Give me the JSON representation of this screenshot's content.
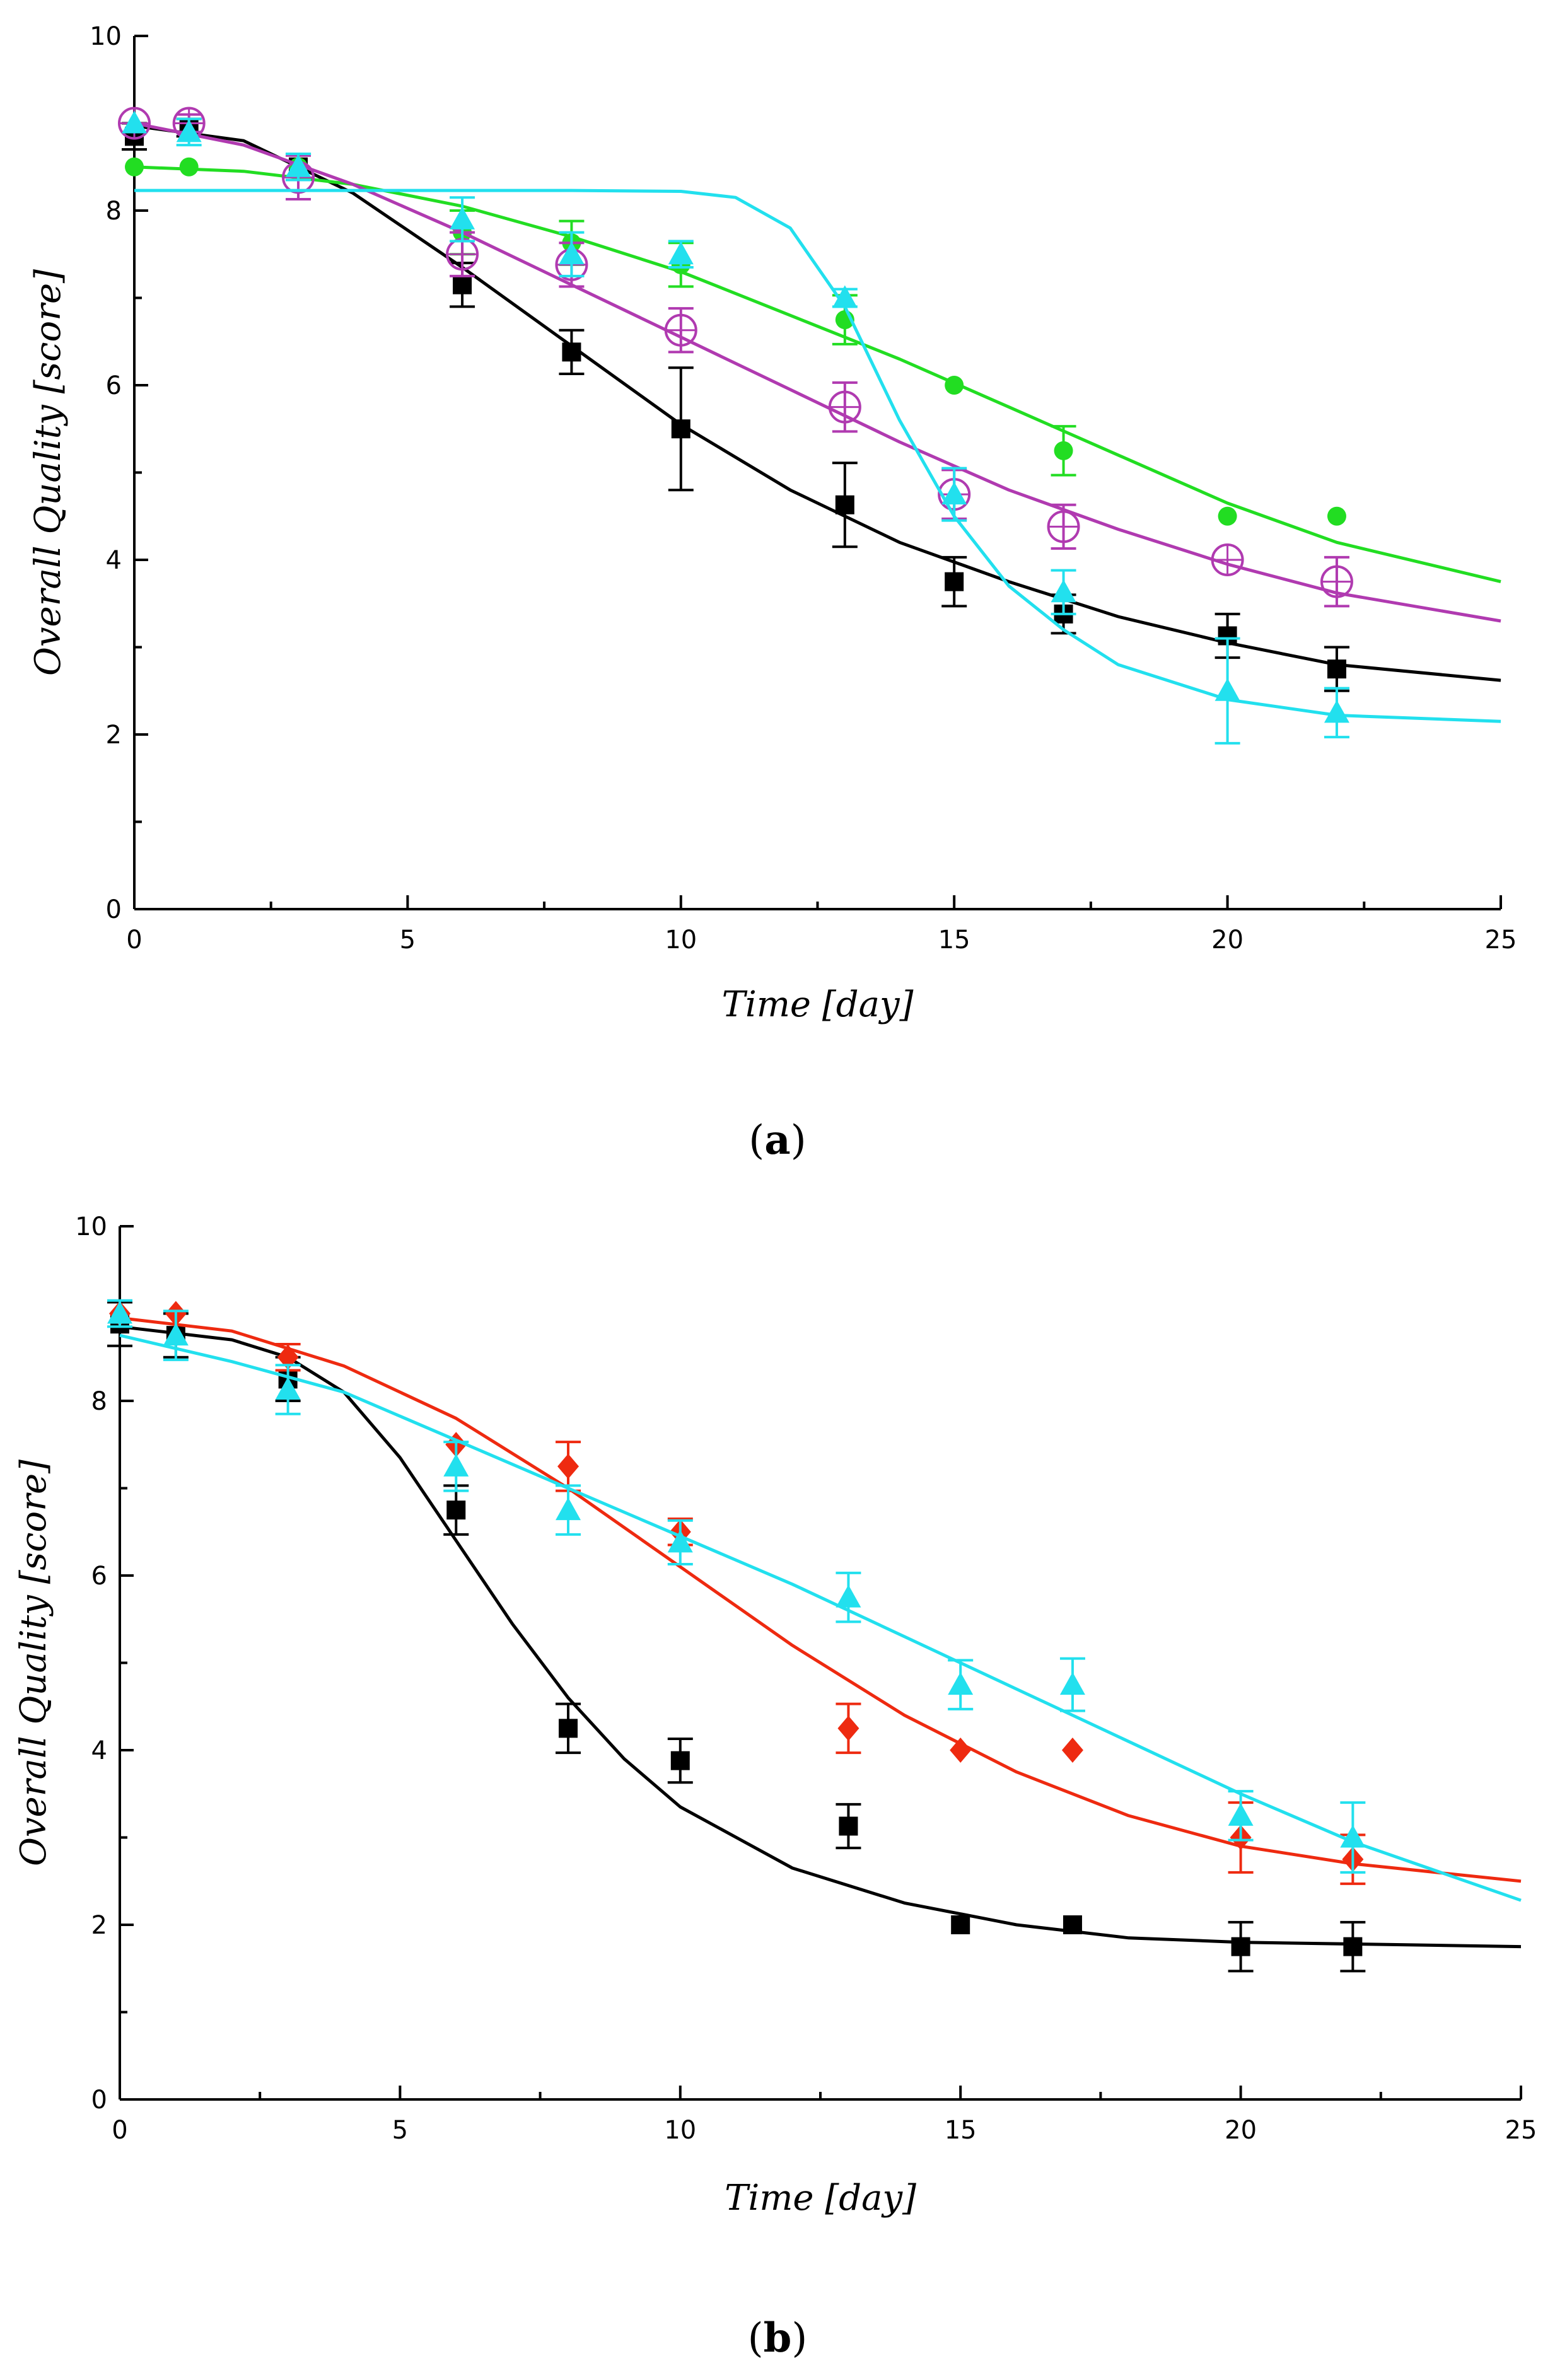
{
  "chart_data": [
    {
      "panel": "a",
      "type": "scatter",
      "xlabel": "Time [day]",
      "ylabel": "Overall Quality [score]",
      "xlim": [
        0,
        25
      ],
      "ylim": [
        0,
        10
      ],
      "xticks": [
        0,
        5,
        10,
        15,
        20,
        25
      ],
      "yticks": [
        0,
        2,
        4,
        6,
        8,
        10
      ],
      "grid": false,
      "series": [
        {
          "color": "#000000",
          "marker": "square",
          "x": [
            0,
            1,
            3,
            6,
            8,
            10,
            13,
            15,
            17,
            20,
            22
          ],
          "y": [
            8.85,
            8.95,
            8.5,
            7.15,
            6.38,
            5.5,
            4.63,
            3.75,
            3.38,
            3.13,
            2.75
          ],
          "err": [
            0.15,
            0.1,
            0.15,
            0.25,
            0.25,
            0.7,
            0.48,
            0.28,
            0.22,
            0.25,
            0.25
          ],
          "fit": [
            [
              0,
              8.97
            ],
            [
              2,
              8.8
            ],
            [
              4,
              8.2
            ],
            [
              6,
              7.35
            ],
            [
              8,
              6.45
            ],
            [
              10,
              5.55
            ],
            [
              12,
              4.8
            ],
            [
              14,
              4.2
            ],
            [
              16,
              3.75
            ],
            [
              18,
              3.35
            ],
            [
              20,
              3.05
            ],
            [
              22,
              2.8
            ],
            [
              25,
              2.62
            ]
          ]
        },
        {
          "color": "#22dd22",
          "marker": "circle-filled",
          "x": [
            0,
            1,
            3,
            6,
            8,
            10,
            13,
            15,
            17,
            20,
            22
          ],
          "y": [
            8.5,
            8.5,
            8.5,
            7.75,
            7.63,
            7.38,
            6.75,
            6.0,
            5.25,
            4.5,
            4.5
          ],
          "err": [
            0,
            0,
            0,
            0.25,
            0.25,
            0.25,
            0.28,
            0,
            0.28,
            0,
            0
          ],
          "fit": [
            [
              0,
              8.5
            ],
            [
              2,
              8.45
            ],
            [
              4,
              8.3
            ],
            [
              6,
              8.05
            ],
            [
              8,
              7.7
            ],
            [
              10,
              7.3
            ],
            [
              12,
              6.8
            ],
            [
              14,
              6.3
            ],
            [
              16,
              5.75
            ],
            [
              18,
              5.2
            ],
            [
              20,
              4.65
            ],
            [
              22,
              4.2
            ],
            [
              25,
              3.75
            ]
          ]
        },
        {
          "color": "#b03ab0",
          "marker": "circle-plus",
          "x": [
            0,
            1,
            3,
            6,
            8,
            10,
            13,
            15,
            17,
            20,
            22
          ],
          "y": [
            9.0,
            9.0,
            8.38,
            7.5,
            7.38,
            6.63,
            5.75,
            4.75,
            4.38,
            4.0,
            3.75
          ],
          "err": [
            0,
            0.1,
            0.25,
            0.25,
            0.25,
            0.25,
            0.28,
            0.28,
            0.25,
            0,
            0.28
          ],
          "fit": [
            [
              0,
              9.0
            ],
            [
              2,
              8.75
            ],
            [
              4,
              8.3
            ],
            [
              6,
              7.75
            ],
            [
              8,
              7.15
            ],
            [
              10,
              6.55
            ],
            [
              12,
              5.95
            ],
            [
              14,
              5.35
            ],
            [
              16,
              4.8
            ],
            [
              18,
              4.35
            ],
            [
              20,
              3.95
            ],
            [
              22,
              3.62
            ],
            [
              25,
              3.3
            ]
          ]
        },
        {
          "color": "#22e0ee",
          "marker": "triangle",
          "x": [
            0,
            1,
            3,
            6,
            8,
            10,
            13,
            15,
            17,
            20,
            22
          ],
          "y": [
            9.0,
            8.9,
            8.5,
            7.9,
            7.5,
            7.5,
            7.0,
            4.75,
            3.63,
            2.5,
            2.25
          ],
          "err": [
            0,
            0.15,
            0.15,
            0.25,
            0.25,
            0.15,
            0.1,
            0.3,
            0.25,
            0.6,
            0.28
          ],
          "fit": [
            [
              0,
              8.23
            ],
            [
              4,
              8.23
            ],
            [
              8,
              8.23
            ],
            [
              10,
              8.22
            ],
            [
              11,
              8.15
            ],
            [
              12,
              7.8
            ],
            [
              13,
              6.9
            ],
            [
              14,
              5.6
            ],
            [
              15,
              4.5
            ],
            [
              16,
              3.7
            ],
            [
              17,
              3.2
            ],
            [
              18,
              2.8
            ],
            [
              20,
              2.4
            ],
            [
              22,
              2.22
            ],
            [
              25,
              2.15
            ]
          ]
        }
      ]
    },
    {
      "panel": "b",
      "type": "scatter",
      "xlabel": "Time [day]",
      "ylabel": "Overall Quality [score]",
      "xlim": [
        0,
        25
      ],
      "ylim": [
        0,
        10
      ],
      "xticks": [
        0,
        5,
        10,
        15,
        20,
        25
      ],
      "yticks": [
        0,
        2,
        4,
        6,
        8,
        10
      ],
      "grid": false,
      "series": [
        {
          "color": "#000000",
          "marker": "square",
          "x": [
            0,
            1,
            3,
            6,
            8,
            10,
            13,
            15,
            17,
            20,
            22
          ],
          "y": [
            8.88,
            8.75,
            8.25,
            6.75,
            4.25,
            3.88,
            3.13,
            2.0,
            2.0,
            1.75,
            1.75
          ],
          "err": [
            0.25,
            0.25,
            0.25,
            0.28,
            0.28,
            0.25,
            0.25,
            0,
            0,
            0.28,
            0.28
          ],
          "fit": [
            [
              0,
              8.85
            ],
            [
              2,
              8.7
            ],
            [
              3,
              8.5
            ],
            [
              4,
              8.1
            ],
            [
              5,
              7.35
            ],
            [
              6,
              6.4
            ],
            [
              7,
              5.45
            ],
            [
              8,
              4.6
            ],
            [
              9,
              3.9
            ],
            [
              10,
              3.35
            ],
            [
              12,
              2.65
            ],
            [
              14,
              2.25
            ],
            [
              16,
              2.0
            ],
            [
              18,
              1.85
            ],
            [
              20,
              1.8
            ],
            [
              25,
              1.75
            ]
          ]
        },
        {
          "color": "#ee2a10",
          "marker": "diamond",
          "x": [
            0,
            1,
            3,
            6,
            8,
            10,
            13,
            15,
            17,
            20,
            22
          ],
          "y": [
            9.0,
            9.0,
            8.5,
            7.5,
            7.25,
            6.5,
            4.25,
            4.0,
            4.0,
            3.0,
            2.75
          ],
          "err": [
            0,
            0,
            0.15,
            0,
            0.28,
            0.15,
            0.28,
            0,
            0,
            0.4,
            0.28
          ],
          "fit": [
            [
              0,
              8.95
            ],
            [
              2,
              8.8
            ],
            [
              4,
              8.4
            ],
            [
              6,
              7.8
            ],
            [
              8,
              7.0
            ],
            [
              10,
              6.1
            ],
            [
              12,
              5.2
            ],
            [
              14,
              4.4
            ],
            [
              16,
              3.75
            ],
            [
              18,
              3.25
            ],
            [
              20,
              2.9
            ],
            [
              22,
              2.7
            ],
            [
              25,
              2.5
            ]
          ]
        },
        {
          "color": "#22e0ee",
          "marker": "triangle",
          "x": [
            0,
            1,
            3,
            6,
            8,
            10,
            13,
            15,
            17,
            20,
            22
          ],
          "y": [
            9.0,
            8.75,
            8.13,
            7.25,
            6.75,
            6.38,
            5.75,
            4.75,
            4.75,
            3.25,
            3.0
          ],
          "err": [
            0.15,
            0.28,
            0.28,
            0.28,
            0.28,
            0.25,
            0.28,
            0.28,
            0.3,
            0.28,
            0.4
          ],
          "fit": [
            [
              0,
              8.75
            ],
            [
              2,
              8.45
            ],
            [
              4,
              8.1
            ],
            [
              6,
              7.55
            ],
            [
              8,
              7.0
            ],
            [
              10,
              6.45
            ],
            [
              12,
              5.9
            ],
            [
              14,
              5.3
            ],
            [
              16,
              4.7
            ],
            [
              18,
              4.1
            ],
            [
              20,
              3.5
            ],
            [
              22,
              2.95
            ],
            [
              25,
              2.28
            ]
          ]
        }
      ]
    }
  ],
  "panel_labels": {
    "a": "a",
    "b": "b"
  }
}
